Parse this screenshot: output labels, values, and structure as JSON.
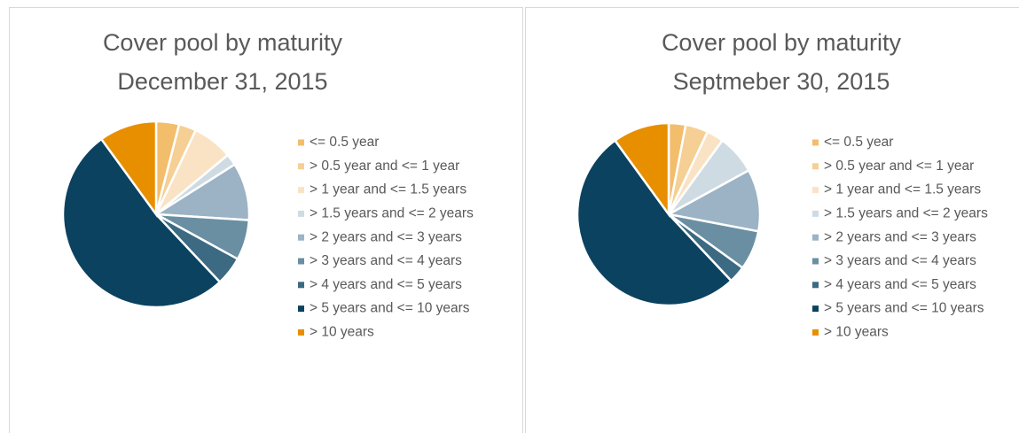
{
  "chart_data": [
    {
      "type": "pie",
      "title": [
        "Cover pool by maturity",
        "December 31, 2015"
      ],
      "categories": [
        "<= 0.5 year",
        "> 0.5 year and <= 1 year",
        "> 1  year and <= 1.5 years",
        "> 1.5 years and <= 2 years",
        "> 2 years and <= 3 years",
        "> 3 years and <= 4 years",
        "> 4 years and <= 5 years",
        "> 5 years and <= 10 years",
        "> 10 years"
      ],
      "values": [
        4,
        3,
        7,
        2,
        10,
        7,
        5,
        52,
        10
      ],
      "colors": [
        "#f2be6c",
        "#f5cf93",
        "#fae3c4",
        "#cfdbe3",
        "#9bb3c4",
        "#6a8fa3",
        "#3b6a82",
        "#0b4260",
        "#e88f00"
      ]
    },
    {
      "type": "pie",
      "title": [
        "Cover pool by maturity",
        "Septmeber 30, 2015"
      ],
      "categories": [
        "<= 0.5 year",
        "> 0.5 year and <= 1 year",
        "> 1  year and <= 1.5 years",
        "> 1.5 years and <= 2 years",
        "> 2 years and <= 3 years",
        "> 3 years and <= 4 years",
        "> 4 years and <= 5 years",
        "> 5 years and <= 10 years",
        "> 10 years"
      ],
      "values": [
        3,
        4,
        3,
        7,
        11,
        7,
        3,
        52,
        10
      ],
      "colors": [
        "#f2be6c",
        "#f5cf93",
        "#fae3c4",
        "#cfdbe3",
        "#9bb3c4",
        "#6a8fa3",
        "#3b6a82",
        "#0b4260",
        "#e88f00"
      ]
    }
  ]
}
